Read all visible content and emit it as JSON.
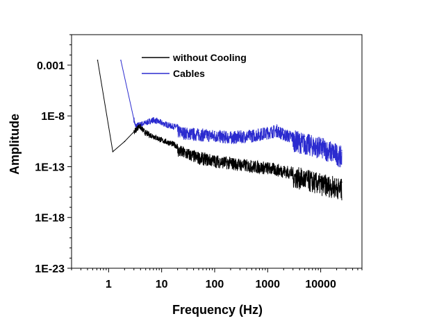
{
  "chart_data": {
    "type": "line",
    "title": "",
    "xlabel": "Frequency (Hz)",
    "ylabel": "Amplitude",
    "xscale": "log",
    "yscale": "log",
    "xlim": [
      0.2,
      60000
    ],
    "ylim": [
      1e-23,
      1.0
    ],
    "xticks": [
      1,
      10,
      100,
      1000,
      10000
    ],
    "xtick_labels": [
      "1",
      "10",
      "100",
      "1000",
      "10000"
    ],
    "yticks": [
      1e-23,
      1e-18,
      1e-13,
      1e-08,
      0.001
    ],
    "ytick_labels": [
      "1E-23",
      "1E-18",
      "1E-13",
      "1E-8",
      "0.001"
    ],
    "grid": false,
    "legend_position": "top-left",
    "series": [
      {
        "name": "without Cooling",
        "color": "#000000",
        "x": [
          0.62,
          1.2,
          2.0,
          3.8,
          5,
          7,
          10,
          15,
          20,
          30,
          50,
          100,
          200,
          500,
          1000,
          2000,
          5000,
          10000,
          20000,
          25000
        ],
        "y": [
          0.003,
          3e-12,
          3e-11,
          1e-09,
          2e-10,
          1e-10,
          4e-11,
          2e-11,
          1e-11,
          5e-12,
          2e-12,
          1e-12,
          6e-13,
          3e-13,
          2e-13,
          1e-13,
          3e-14,
          1e-14,
          5e-15,
          3e-15
        ]
      },
      {
        "name": "Cables",
        "color": "#2b2bcf",
        "x": [
          1.7,
          3.2,
          5,
          7,
          10,
          15,
          20,
          30,
          50,
          100,
          200,
          500,
          1000,
          1500,
          2000,
          5000,
          10000,
          20000,
          25000
        ],
        "y": [
          0.003,
          1e-09,
          2e-09,
          4e-09,
          2e-09,
          1e-09,
          8e-10,
          5e-10,
          4e-10,
          3e-10,
          2e-10,
          3e-10,
          6e-10,
          1e-09,
          4e-10,
          1e-10,
          4e-11,
          1e-11,
          4e-12
        ]
      }
    ]
  }
}
